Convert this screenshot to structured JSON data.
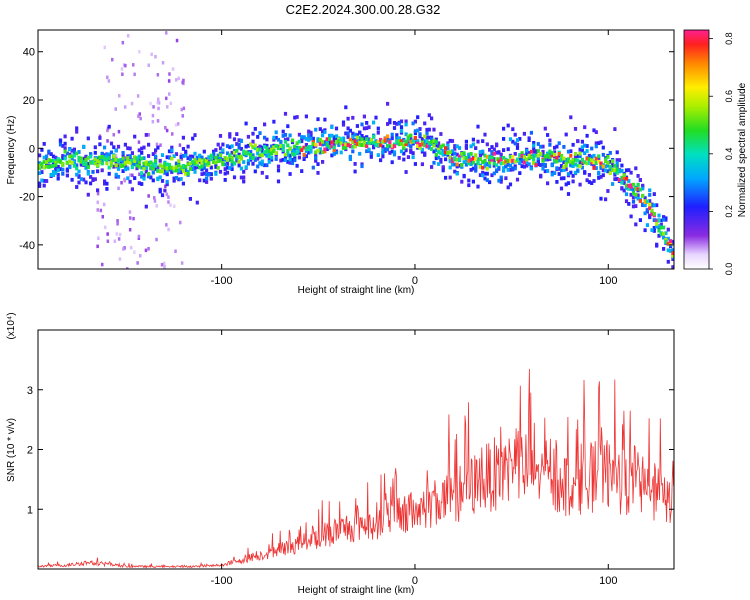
{
  "figure": {
    "title": "C2E2.2024.300.00.28.G32"
  },
  "chart_data": [
    {
      "type": "heatmap",
      "title": "C2E2.2024.300.00.28.G32",
      "xlabel": "Height of straight line (km)",
      "ylabel": "Frequency (Hz)",
      "xlim": [
        -195,
        134
      ],
      "ylim": [
        -50,
        49
      ],
      "xticks": [
        -100,
        0,
        100
      ],
      "yticks": [
        -40,
        -20,
        0,
        20,
        40
      ],
      "colorbar": {
        "label": "Normalized spectral amplitude",
        "range": [
          0.0,
          0.83
        ],
        "ticks": [
          "0.0",
          "0.2",
          "0.4",
          "0.6",
          "0.8"
        ],
        "colormap": "rainbow (white-purple-blue-cyan-green-yellow-red-magenta)"
      },
      "ridge": {
        "x": [
          -195,
          -180,
          -160,
          -140,
          -120,
          -100,
          -85,
          -70,
          -55,
          -40,
          -30,
          -20,
          -10,
          0,
          8,
          12,
          20,
          30,
          40,
          50,
          60,
          70,
          80,
          90,
          100,
          105,
          110,
          115,
          120,
          125,
          130,
          134
        ],
        "y": [
          -6,
          -5,
          -5,
          -6,
          -7,
          -4,
          -1,
          1,
          1,
          3,
          3,
          3,
          3,
          4,
          3,
          1,
          -4,
          -4,
          -5,
          -3,
          -3,
          -3,
          -4,
          -4,
          -6,
          -10,
          -14,
          -18,
          -23,
          -30,
          -38,
          -46
        ]
      }
    },
    {
      "type": "line",
      "xlabel": "Height of straight line (km)",
      "ylabel": "SNR (10 * v/v)",
      "multiplier": "(x10⁴)",
      "xlim": [
        -195,
        134
      ],
      "ylim": [
        0,
        4
      ],
      "xticks": [
        -100,
        0,
        100
      ],
      "yticks": [
        1,
        2,
        3
      ],
      "color": "#ee3333",
      "envelope": {
        "x": [
          -195,
          -180,
          -170,
          -160,
          -150,
          -130,
          -110,
          -100,
          -90,
          -80,
          -70,
          -60,
          -50,
          -40,
          -30,
          -20,
          -10,
          0,
          10,
          20,
          30,
          40,
          50,
          60,
          70,
          80,
          90,
          100,
          110,
          120,
          125,
          130,
          134
        ],
        "y": [
          0.05,
          0.07,
          0.12,
          0.09,
          0.05,
          0.04,
          0.05,
          0.07,
          0.17,
          0.26,
          0.36,
          0.48,
          0.6,
          0.72,
          0.82,
          0.9,
          1.0,
          1.05,
          1.25,
          1.35,
          1.55,
          1.75,
          1.9,
          1.85,
          1.7,
          1.55,
          1.7,
          1.75,
          1.6,
          1.5,
          1.45,
          1.2,
          1.5
        ]
      }
    }
  ]
}
